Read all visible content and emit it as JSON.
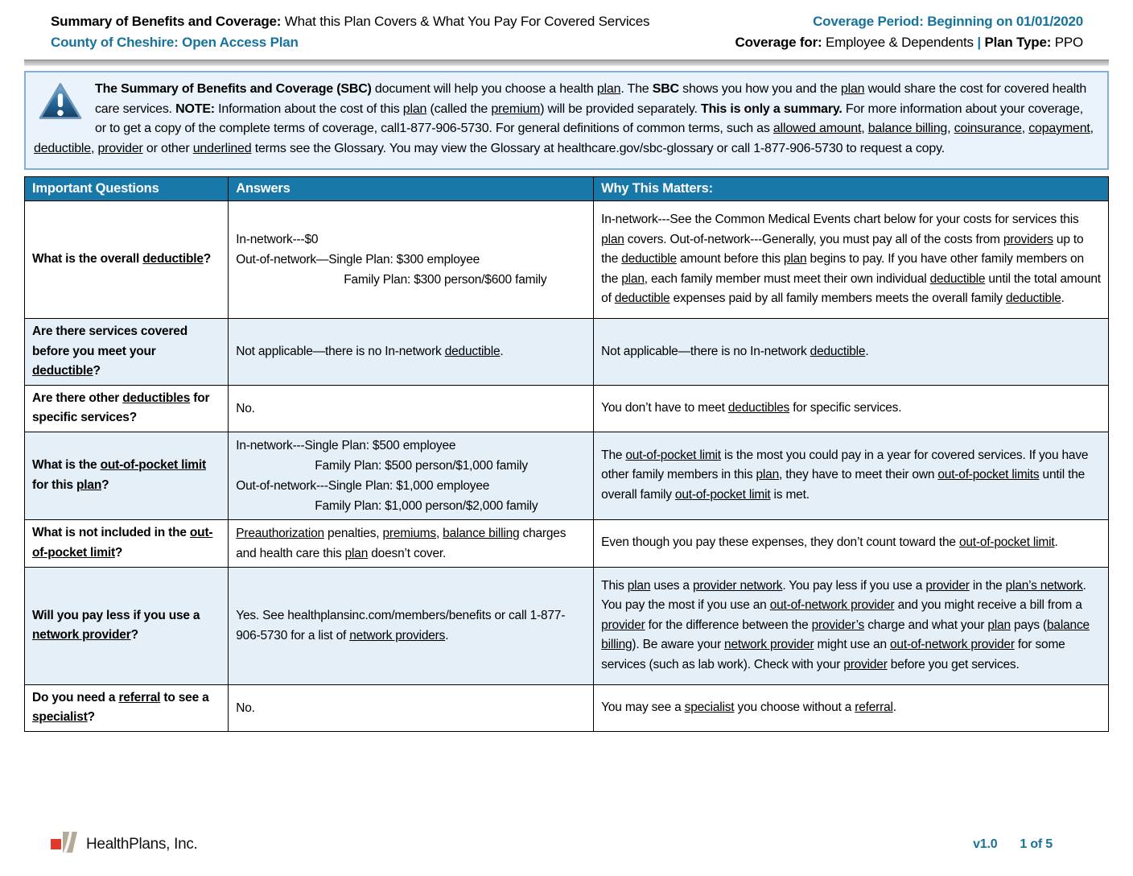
{
  "colors": {
    "accent": "#17739B",
    "table_header": "#1878A8",
    "row_alt": "#E4EFF8",
    "intro_bg": "#EAF2FB",
    "intro_border": "#86AED2",
    "logo_red": "#E03A2F",
    "logo_tan": "#B3AB96"
  },
  "header": {
    "title_bold": "Summary of Benefits and Coverage:",
    "title_rest": " What this Plan Covers & What You Pay For Covered Services",
    "plan_name": "County of Cheshire: Open Access Plan",
    "coverage_period": "Coverage Period: Beginning on 01/01/2020",
    "coverage_for_label": "Coverage for:",
    "coverage_for_value": " Employee & Dependents ",
    "separator": "| ",
    "plan_type_label": "Plan Type:",
    "plan_type_value": " PPO"
  },
  "intro": {
    "icon": "warning-triangle-icon",
    "segments": [
      {
        "t": "The Summary of Benefits and Coverage (SBC)",
        "b": true
      },
      " document will help you choose a health ",
      {
        "t": "plan",
        "u": true
      },
      ". The ",
      {
        "t": "SBC",
        "b": true
      },
      " shows you how you and the ",
      {
        "t": "plan",
        "u": true
      },
      " would share the cost for covered health care services. ",
      {
        "t": "NOTE:",
        "b": true
      },
      " Information about the cost of this ",
      {
        "t": "plan",
        "u": true
      },
      " (called the ",
      {
        "t": "premium",
        "u": true
      },
      ") will be provided separately. ",
      {
        "t": "This is only a summary.",
        "b": true
      },
      " For more information about your coverage, or to get a copy of the complete terms of coverage, call1-877-906-5730. For general definitions of common terms, such as ",
      {
        "t": "allowed amount",
        "u": true
      },
      ", ",
      {
        "t": "balance billing",
        "u": true
      },
      ", ",
      {
        "t": "coinsurance",
        "u": true
      },
      ", ",
      {
        "t": "copayment",
        "u": true
      },
      ", ",
      {
        "t": "deductible",
        "u": true
      },
      ", ",
      {
        "t": "provider",
        "u": true
      },
      " or other ",
      {
        "t": "underlined",
        "u": true
      },
      " terms see the Glossary. You may view the Glossary at healthcare.gov/sbc-glossary or call 1-877-906-5730 to request a copy."
    ]
  },
  "table": {
    "headers": [
      "Important Questions",
      "Answers",
      "Why This Matters:"
    ],
    "rows": [
      {
        "question": [
          "What is the overall ",
          {
            "t": "deductible",
            "u": true
          },
          "?"
        ],
        "answer": [
          {
            "segs": [
              "In-network---$0"
            ]
          },
          {
            "segs": [
              "Out-of-network—Single Plan: $300 employee"
            ]
          },
          {
            "indent": 2,
            "segs": [
              "Family Plan: $300 person/$600 family"
            ]
          }
        ],
        "why": [
          "In-network---See the Common Medical Events chart below for your costs for services this ",
          {
            "t": "plan",
            "u": true
          },
          " covers. Out-of-network---Generally, you must pay all of the costs from ",
          {
            "t": "providers",
            "u": true
          },
          " up to the ",
          {
            "t": "deductible",
            "u": true
          },
          " amount before this ",
          {
            "t": "plan",
            "u": true
          },
          " begins to pay. If you have other family members on the ",
          {
            "t": "plan",
            "u": true
          },
          ", each family member must meet their own individual ",
          {
            "t": "deductible",
            "u": true
          },
          " until the total amount of ",
          {
            "t": "deductible",
            "u": true
          },
          " expenses paid by all family members meets the overall family ",
          {
            "t": "deductible",
            "u": true
          },
          "."
        ]
      },
      {
        "question": [
          "Are there services covered before you meet your ",
          {
            "t": "deductible",
            "u": true
          },
          "?"
        ],
        "answer": [
          {
            "segs": [
              "Not applicable—there is no In-network ",
              {
                "t": "deductible",
                "u": true
              },
              "."
            ]
          }
        ],
        "why": [
          "Not applicable—there is no In-network ",
          {
            "t": "deductible",
            "u": true
          },
          "."
        ]
      },
      {
        "question": [
          "Are there other ",
          {
            "t": "deductibles",
            "u": true
          },
          " for specific services?"
        ],
        "answer": [
          {
            "segs": [
              "No."
            ]
          }
        ],
        "why": [
          "You don’t have to meet ",
          {
            "t": "deductibles",
            "u": true
          },
          " for specific services."
        ]
      },
      {
        "question": [
          "What is the ",
          {
            "t": "out-of-pocket limit",
            "u": true
          },
          " for this ",
          {
            "t": "plan",
            "u": true
          },
          "?"
        ],
        "answer": [
          {
            "segs": [
              "In-network---Single Plan: $500 employee"
            ]
          },
          {
            "indent": 1,
            "segs": [
              "Family Plan: $500 person/$1,000 family"
            ]
          },
          {
            "segs": [
              "Out-of-network---Single Plan: $1,000 employee"
            ]
          },
          {
            "indent": 1,
            "segs": [
              "Family Plan: $1,000 person/$2,000 family"
            ]
          }
        ],
        "why": [
          "The ",
          {
            "t": "out-of-pocket limit",
            "u": true
          },
          " is the most you could pay in a year for covered services. If you have other family members in this ",
          {
            "t": "plan",
            "u": true
          },
          ", they have to meet their own ",
          {
            "t": "out-of-pocket limits",
            "u": true
          },
          " until the overall family ",
          {
            "t": "out-of-pocket limit",
            "u": true
          },
          " is met."
        ]
      },
      {
        "question": [
          "What is not included in the ",
          {
            "t": "out-of-pocket limit",
            "u": true
          },
          "?"
        ],
        "answer": [
          {
            "segs": [
              {
                "t": "Preauthorization",
                "u": true
              },
              " penalties, ",
              {
                "t": "premiums",
                "u": true
              },
              ", ",
              {
                "t": "balance billing",
                "u": true
              },
              " charges and health care this ",
              {
                "t": "plan",
                "u": true
              },
              " doesn’t cover."
            ]
          }
        ],
        "why": [
          "Even though you pay these expenses, they don’t count toward the ",
          {
            "t": "out-of-pocket limit",
            "u": true
          },
          "."
        ]
      },
      {
        "question": [
          "Will you pay less if you use a ",
          {
            "t": "network provider",
            "u": true
          },
          "?"
        ],
        "answer": [
          {
            "segs": [
              "Yes. See healthplansinc.com/members/benefits or call 1-877-906-5730 for a list of ",
              {
                "t": "network providers",
                "u": true
              },
              "."
            ]
          }
        ],
        "why": [
          "This ",
          {
            "t": "plan",
            "u": true
          },
          " uses a ",
          {
            "t": "provider network",
            "u": true
          },
          ". You pay less if you use a ",
          {
            "t": "provider",
            "u": true
          },
          " in the ",
          {
            "t": "plan’s network",
            "u": true
          },
          ".  You pay the most if you use an ",
          {
            "t": "out-of-network provider",
            "u": true
          },
          " and you might receive a bill from a ",
          {
            "t": "provider",
            "u": true
          },
          " for the difference between the ",
          {
            "t": "provider’s",
            "u": true
          },
          " charge and what your ",
          {
            "t": "plan",
            "u": true
          },
          " pays (",
          {
            "t": "balance billing",
            "u": true
          },
          "). Be aware your ",
          {
            "t": "network provider",
            "u": true
          },
          " might use an ",
          {
            "t": "out-of-network provider",
            "u": true
          },
          " for some services (such as lab work).  Check with your ",
          {
            "t": "provider",
            "u": true
          },
          " before you get services."
        ]
      },
      {
        "question": [
          "Do you need a ",
          {
            "t": "referral",
            "u": true
          },
          " to see a ",
          {
            "t": "specialist",
            "u": true
          },
          "?"
        ],
        "answer": [
          {
            "segs": [
              "No."
            ]
          }
        ],
        "why": [
          "You may see a ",
          {
            "t": "specialist",
            "u": true
          },
          " you choose without a ",
          {
            "t": "referral",
            "u": true
          },
          "."
        ]
      }
    ]
  },
  "footer": {
    "logo_text": "HealthPlans, Inc.",
    "version": "v1.0",
    "page": "1 of 5"
  }
}
